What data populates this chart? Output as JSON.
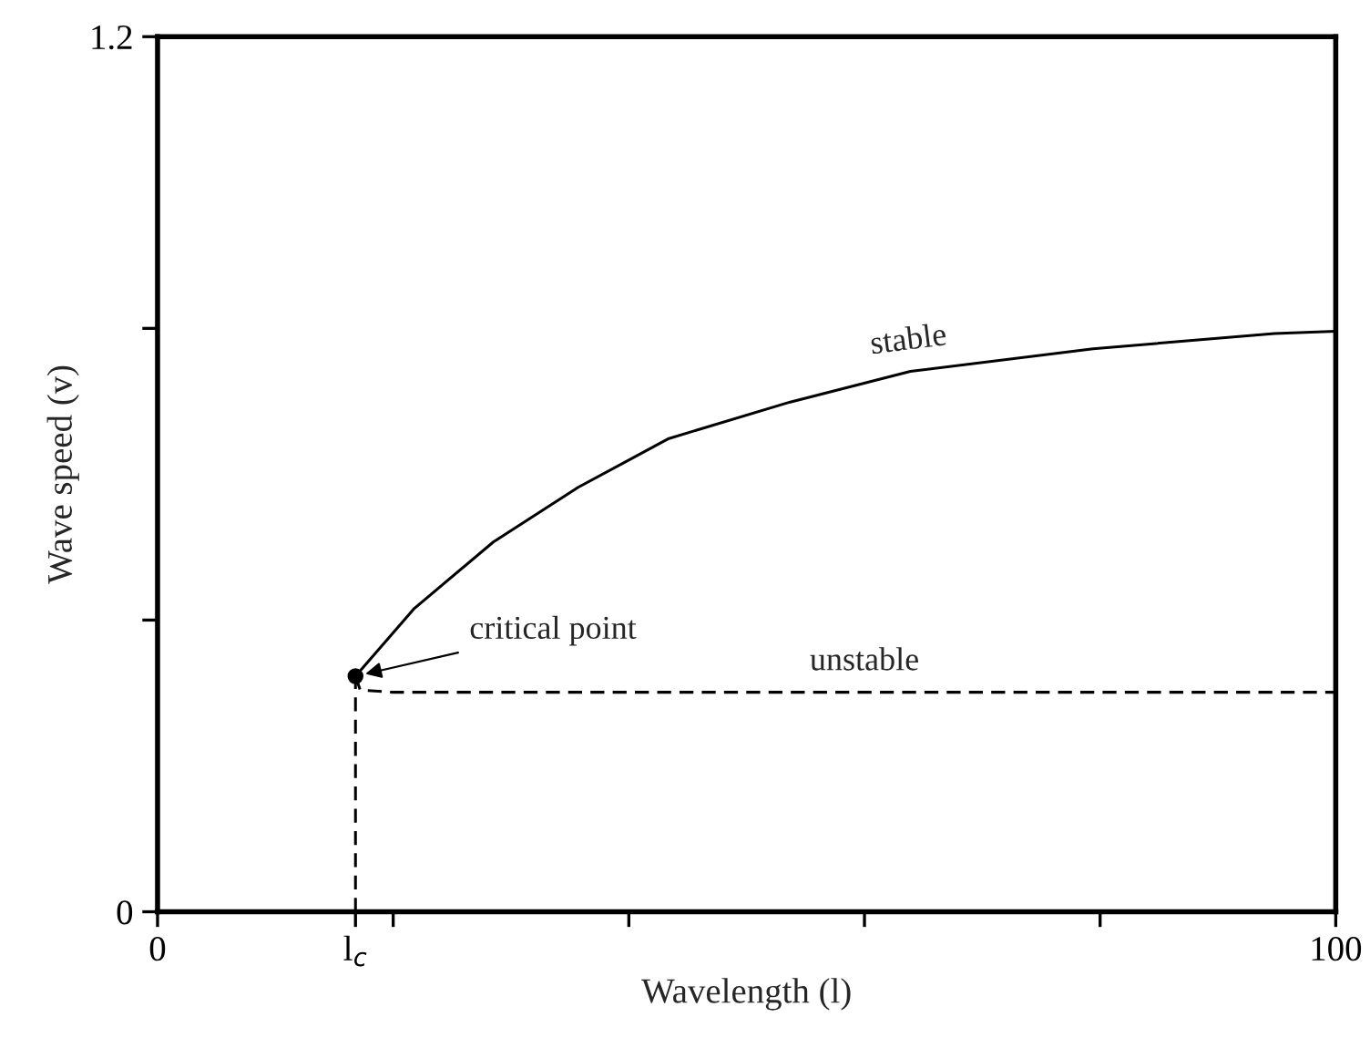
{
  "chart_data": {
    "type": "line",
    "xlabel": "Wavelength (l)",
    "ylabel": "Wave speed (v)",
    "series": [
      {
        "name": "stable",
        "color": "#000000",
        "line_style": "solid",
        "x": [
          16.8,
          21.8,
          28.5,
          35.7,
          43.4,
          53.7,
          63.9,
          79.4,
          94.8,
          100
        ],
        "values": [
          0.323,
          0.416,
          0.507,
          0.582,
          0.649,
          0.699,
          0.741,
          0.772,
          0.793,
          0.796
        ]
      },
      {
        "name": "unstable",
        "color": "#000000",
        "line_style": "dashed",
        "x": [
          16.8,
          17.2,
          20,
          40,
          60,
          80,
          100
        ],
        "values": [
          0.323,
          0.304,
          0.301,
          0.301,
          0.301,
          0.301,
          0.301
        ]
      },
      {
        "color": "#000000",
        "line_style": "dashed",
        "x": [
          16.8,
          16.8
        ],
        "values": [
          0,
          0.323
        ]
      },
      {
        "type": "scatter",
        "color": "#000000",
        "marker": "circle",
        "x": [
          16.8
        ],
        "values": [
          0.323
        ]
      }
    ],
    "annotations": [
      {
        "text": "critical point",
        "x": 16.8,
        "y": 0.323
      }
    ],
    "xlim": [
      0,
      100
    ],
    "ylim": [
      0,
      1.2
    ],
    "xticks": [
      0,
      {
        "value": 16.8,
        "label": "l$_{c}$"
      },
      {
        "value": 20,
        "label": null
      },
      {
        "value": 40,
        "label": null
      },
      {
        "value": 60,
        "label": null
      },
      {
        "value": 80,
        "label": null
      },
      100
    ],
    "yticks": [
      0,
      {
        "value": 0.4,
        "label": null
      },
      {
        "value": 0.8,
        "label": null
      },
      1.2
    ],
    "grid": false,
    "legend": false,
    "marker": "none"
  }
}
